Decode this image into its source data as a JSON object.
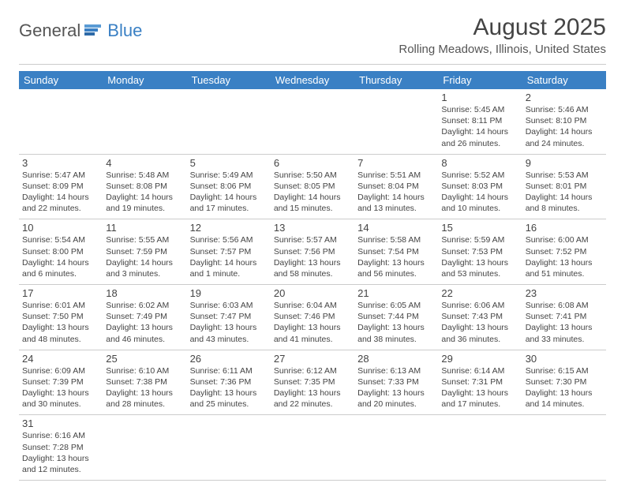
{
  "logo": {
    "part1": "General",
    "part2": "Blue"
  },
  "title": "August 2025",
  "location": "Rolling Meadows, Illinois, United States",
  "colors": {
    "header_bg": "#3a80c4",
    "header_text": "#ffffff",
    "body_text": "#444444",
    "divider": "#cccccc",
    "logo_accent": "#3a80c4"
  },
  "days_of_week": [
    "Sunday",
    "Monday",
    "Tuesday",
    "Wednesday",
    "Thursday",
    "Friday",
    "Saturday"
  ],
  "weeks": [
    [
      null,
      null,
      null,
      null,
      null,
      {
        "n": "1",
        "sr": "Sunrise: 5:45 AM",
        "ss": "Sunset: 8:11 PM",
        "d1": "Daylight: 14 hours",
        "d2": "and 26 minutes."
      },
      {
        "n": "2",
        "sr": "Sunrise: 5:46 AM",
        "ss": "Sunset: 8:10 PM",
        "d1": "Daylight: 14 hours",
        "d2": "and 24 minutes."
      }
    ],
    [
      {
        "n": "3",
        "sr": "Sunrise: 5:47 AM",
        "ss": "Sunset: 8:09 PM",
        "d1": "Daylight: 14 hours",
        "d2": "and 22 minutes."
      },
      {
        "n": "4",
        "sr": "Sunrise: 5:48 AM",
        "ss": "Sunset: 8:08 PM",
        "d1": "Daylight: 14 hours",
        "d2": "and 19 minutes."
      },
      {
        "n": "5",
        "sr": "Sunrise: 5:49 AM",
        "ss": "Sunset: 8:06 PM",
        "d1": "Daylight: 14 hours",
        "d2": "and 17 minutes."
      },
      {
        "n": "6",
        "sr": "Sunrise: 5:50 AM",
        "ss": "Sunset: 8:05 PM",
        "d1": "Daylight: 14 hours",
        "d2": "and 15 minutes."
      },
      {
        "n": "7",
        "sr": "Sunrise: 5:51 AM",
        "ss": "Sunset: 8:04 PM",
        "d1": "Daylight: 14 hours",
        "d2": "and 13 minutes."
      },
      {
        "n": "8",
        "sr": "Sunrise: 5:52 AM",
        "ss": "Sunset: 8:03 PM",
        "d1": "Daylight: 14 hours",
        "d2": "and 10 minutes."
      },
      {
        "n": "9",
        "sr": "Sunrise: 5:53 AM",
        "ss": "Sunset: 8:01 PM",
        "d1": "Daylight: 14 hours",
        "d2": "and 8 minutes."
      }
    ],
    [
      {
        "n": "10",
        "sr": "Sunrise: 5:54 AM",
        "ss": "Sunset: 8:00 PM",
        "d1": "Daylight: 14 hours",
        "d2": "and 6 minutes."
      },
      {
        "n": "11",
        "sr": "Sunrise: 5:55 AM",
        "ss": "Sunset: 7:59 PM",
        "d1": "Daylight: 14 hours",
        "d2": "and 3 minutes."
      },
      {
        "n": "12",
        "sr": "Sunrise: 5:56 AM",
        "ss": "Sunset: 7:57 PM",
        "d1": "Daylight: 14 hours",
        "d2": "and 1 minute."
      },
      {
        "n": "13",
        "sr": "Sunrise: 5:57 AM",
        "ss": "Sunset: 7:56 PM",
        "d1": "Daylight: 13 hours",
        "d2": "and 58 minutes."
      },
      {
        "n": "14",
        "sr": "Sunrise: 5:58 AM",
        "ss": "Sunset: 7:54 PM",
        "d1": "Daylight: 13 hours",
        "d2": "and 56 minutes."
      },
      {
        "n": "15",
        "sr": "Sunrise: 5:59 AM",
        "ss": "Sunset: 7:53 PM",
        "d1": "Daylight: 13 hours",
        "d2": "and 53 minutes."
      },
      {
        "n": "16",
        "sr": "Sunrise: 6:00 AM",
        "ss": "Sunset: 7:52 PM",
        "d1": "Daylight: 13 hours",
        "d2": "and 51 minutes."
      }
    ],
    [
      {
        "n": "17",
        "sr": "Sunrise: 6:01 AM",
        "ss": "Sunset: 7:50 PM",
        "d1": "Daylight: 13 hours",
        "d2": "and 48 minutes."
      },
      {
        "n": "18",
        "sr": "Sunrise: 6:02 AM",
        "ss": "Sunset: 7:49 PM",
        "d1": "Daylight: 13 hours",
        "d2": "and 46 minutes."
      },
      {
        "n": "19",
        "sr": "Sunrise: 6:03 AM",
        "ss": "Sunset: 7:47 PM",
        "d1": "Daylight: 13 hours",
        "d2": "and 43 minutes."
      },
      {
        "n": "20",
        "sr": "Sunrise: 6:04 AM",
        "ss": "Sunset: 7:46 PM",
        "d1": "Daylight: 13 hours",
        "d2": "and 41 minutes."
      },
      {
        "n": "21",
        "sr": "Sunrise: 6:05 AM",
        "ss": "Sunset: 7:44 PM",
        "d1": "Daylight: 13 hours",
        "d2": "and 38 minutes."
      },
      {
        "n": "22",
        "sr": "Sunrise: 6:06 AM",
        "ss": "Sunset: 7:43 PM",
        "d1": "Daylight: 13 hours",
        "d2": "and 36 minutes."
      },
      {
        "n": "23",
        "sr": "Sunrise: 6:08 AM",
        "ss": "Sunset: 7:41 PM",
        "d1": "Daylight: 13 hours",
        "d2": "and 33 minutes."
      }
    ],
    [
      {
        "n": "24",
        "sr": "Sunrise: 6:09 AM",
        "ss": "Sunset: 7:39 PM",
        "d1": "Daylight: 13 hours",
        "d2": "and 30 minutes."
      },
      {
        "n": "25",
        "sr": "Sunrise: 6:10 AM",
        "ss": "Sunset: 7:38 PM",
        "d1": "Daylight: 13 hours",
        "d2": "and 28 minutes."
      },
      {
        "n": "26",
        "sr": "Sunrise: 6:11 AM",
        "ss": "Sunset: 7:36 PM",
        "d1": "Daylight: 13 hours",
        "d2": "and 25 minutes."
      },
      {
        "n": "27",
        "sr": "Sunrise: 6:12 AM",
        "ss": "Sunset: 7:35 PM",
        "d1": "Daylight: 13 hours",
        "d2": "and 22 minutes."
      },
      {
        "n": "28",
        "sr": "Sunrise: 6:13 AM",
        "ss": "Sunset: 7:33 PM",
        "d1": "Daylight: 13 hours",
        "d2": "and 20 minutes."
      },
      {
        "n": "29",
        "sr": "Sunrise: 6:14 AM",
        "ss": "Sunset: 7:31 PM",
        "d1": "Daylight: 13 hours",
        "d2": "and 17 minutes."
      },
      {
        "n": "30",
        "sr": "Sunrise: 6:15 AM",
        "ss": "Sunset: 7:30 PM",
        "d1": "Daylight: 13 hours",
        "d2": "and 14 minutes."
      }
    ],
    [
      {
        "n": "31",
        "sr": "Sunrise: 6:16 AM",
        "ss": "Sunset: 7:28 PM",
        "d1": "Daylight: 13 hours",
        "d2": "and 12 minutes."
      },
      null,
      null,
      null,
      null,
      null,
      null
    ]
  ]
}
